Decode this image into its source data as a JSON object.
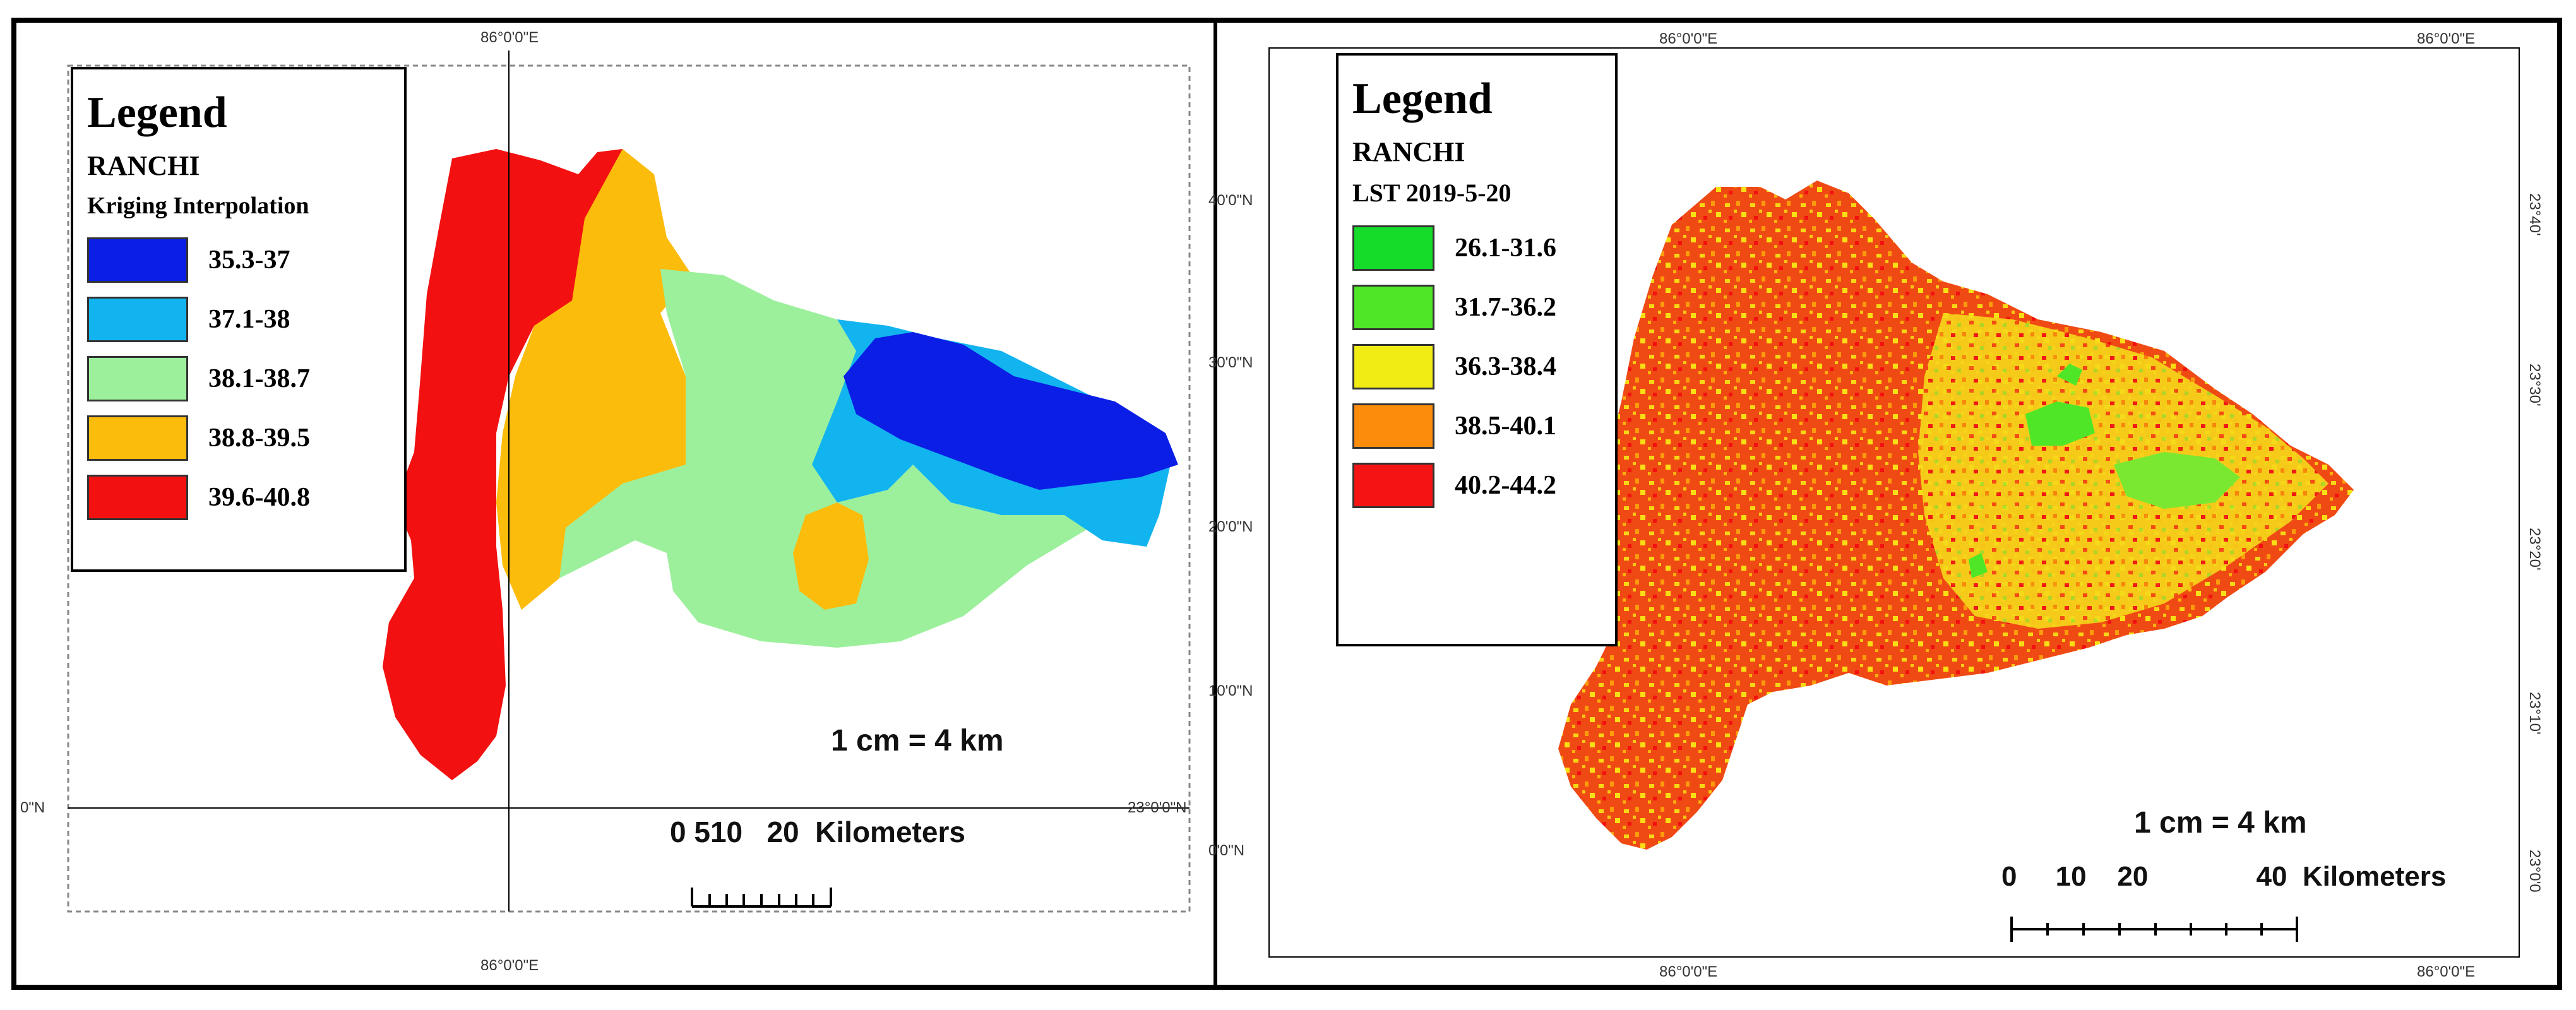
{
  "left_map": {
    "legend": {
      "title": "Legend",
      "region": "RANCHI",
      "layer": "Kriging Interpolation",
      "classes": [
        {
          "label": "35.3-37",
          "color": "#0a1ee6"
        },
        {
          "label": "37.1-38",
          "color": "#12b4f0"
        },
        {
          "label": "38.1-38.7",
          "color": "#9cf09c"
        },
        {
          "label": "38.8-39.5",
          "color": "#fcbc0c"
        },
        {
          "label": "39.6-40.8",
          "color": "#f21010"
        }
      ]
    },
    "coords": {
      "top_lon": "86°0'0\"E",
      "bottom_lon": "86°0'0\"E",
      "left_lat": "0\"N",
      "right_lat": "23°0'0\"N"
    },
    "scale_ratio": "1 cm = 4 km",
    "scale_bar": "0 510   20  Kilometers"
  },
  "right_map": {
    "legend": {
      "title": "Legend",
      "region": "RANCHI",
      "layer": "LST 2019-5-20",
      "classes": [
        {
          "label": "26.1-31.6",
          "color": "#14dc28"
        },
        {
          "label": "31.7-36.2",
          "color": "#50e628"
        },
        {
          "label": "36.3-38.4",
          "color": "#f0ec14"
        },
        {
          "label": "38.5-40.1",
          "color": "#fc8c0c"
        },
        {
          "label": "40.2-44.2",
          "color": "#f41414"
        }
      ]
    },
    "coords": {
      "top_lon_1": "86°0'0\"E",
      "top_lon_2": "86°0'0\"E",
      "bottom_lon_1": "86°0'0\"E",
      "bottom_lon_2": "86°0'0\"E",
      "left_lats": [
        "40'0\"N",
        "30'0\"N",
        "20'0\"N",
        "10'0\"N",
        "0'0\"N"
      ],
      "right_lats": [
        "23°40'",
        "23°30'",
        "23°20'",
        "23°10'",
        "23°0'0"
      ]
    },
    "scale_ratio": "1 cm = 4 km",
    "scale_bar": "0     10    20              40  Kilometers"
  }
}
